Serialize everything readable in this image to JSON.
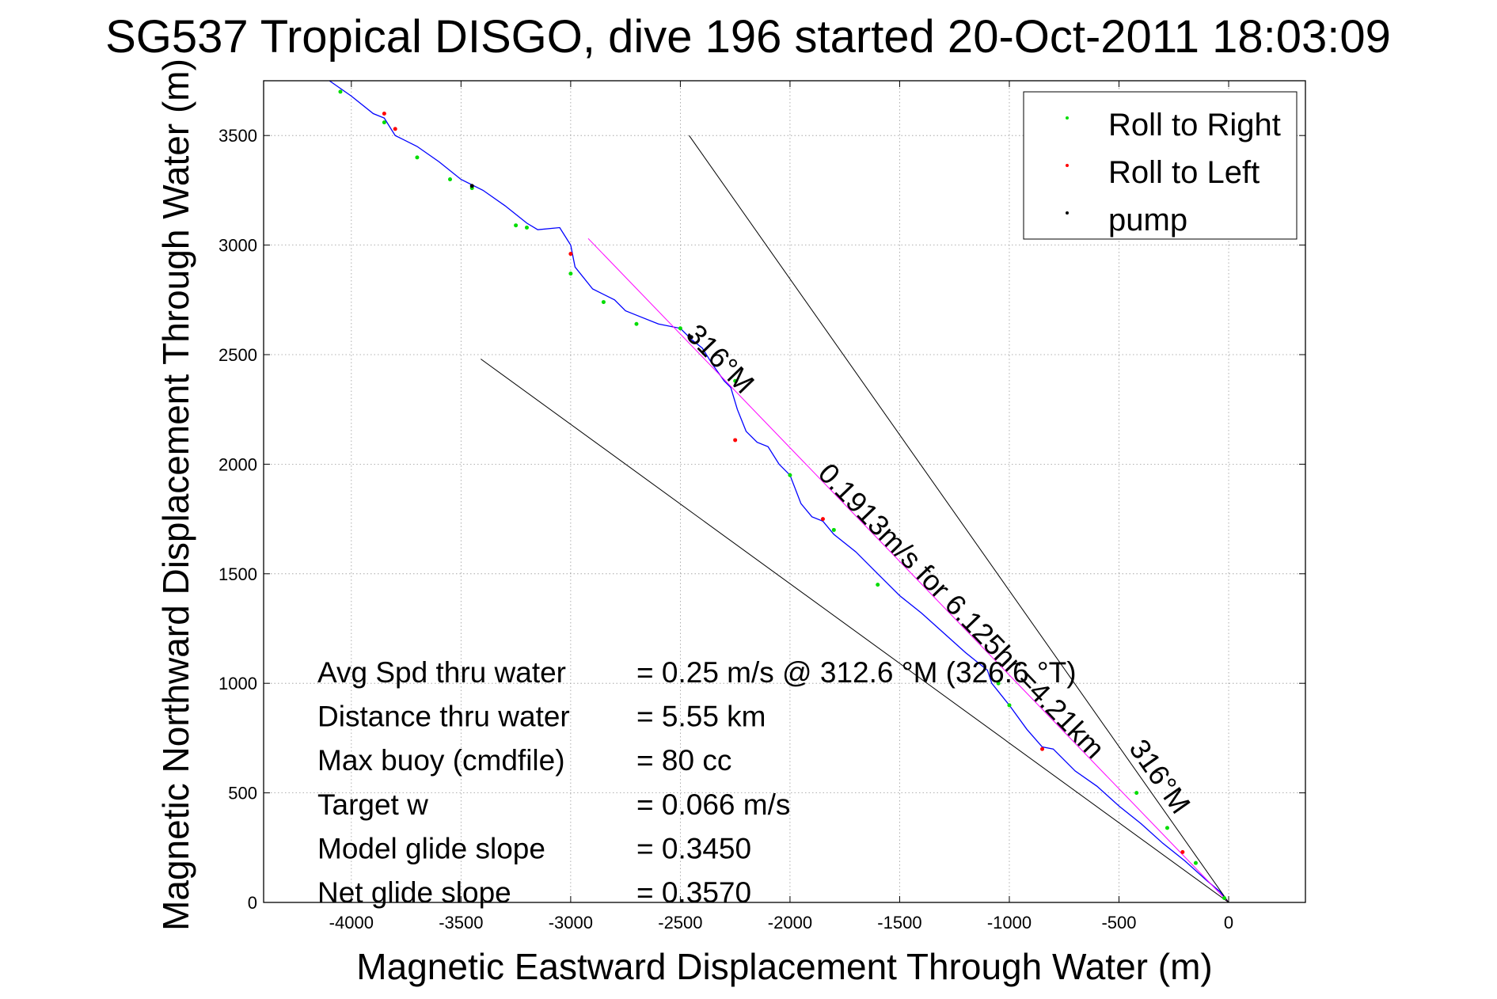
{
  "chart_data": {
    "type": "line",
    "title": "SG537 Tropical DISGO, dive 196 started 20-Oct-2011 18:03:09",
    "xlabel": "Magnetic Eastward Displacement Through Water (m)",
    "ylabel": "Magnetic Northward Displacement Through Water (m)",
    "xlim": [
      -4400,
      350
    ],
    "ylim": [
      0,
      3750
    ],
    "xticks": [
      -4000,
      -3500,
      -3000,
      -2500,
      -2000,
      -1500,
      -1000,
      -500,
      0
    ],
    "yticks": [
      0,
      500,
      1000,
      1500,
      2000,
      2500,
      3000,
      3500
    ],
    "xtick_labels": [
      "-4000",
      "-3500",
      "-3000",
      "-2500",
      "-2000",
      "-1500",
      "-1000",
      "-500",
      "0"
    ],
    "ytick_labels": [
      "0",
      "500",
      "1000",
      "1500",
      "2000",
      "2500",
      "3000",
      "3500"
    ],
    "grid": true,
    "legend_position": "top-right",
    "legend": [
      {
        "label": "Roll to Right",
        "color": "#00dd00"
      },
      {
        "label": "Roll to Left",
        "color": "#ff0000"
      },
      {
        "label": "pump",
        "color": "#000000"
      }
    ],
    "series": [
      {
        "color": "#0000ff",
        "x": [
          0,
          -40,
          -100,
          -200,
          -300,
          -400,
          -500,
          -600,
          -700,
          -800,
          -850,
          -920,
          -1000,
          -1080,
          -1100,
          -1200,
          -1300,
          -1400,
          -1500,
          -1600,
          -1700,
          -1800,
          -1850,
          -1900,
          -1950,
          -2000,
          -2050,
          -2100,
          -2150,
          -2200,
          -2240,
          -2270,
          -2300,
          -2350,
          -2400,
          -2450,
          -2500,
          -2600,
          -2700,
          -2750,
          -2800,
          -2900,
          -2980,
          -3000,
          -3050,
          -3150,
          -3200,
          -3300,
          -3400,
          -3500,
          -3600,
          -3700,
          -3800,
          -3850,
          -3900,
          -4000,
          -4100
        ],
        "y": [
          0,
          50,
          100,
          190,
          270,
          360,
          440,
          530,
          600,
          700,
          710,
          790,
          900,
          1000,
          1060,
          1140,
          1230,
          1320,
          1400,
          1500,
          1600,
          1680,
          1740,
          1760,
          1820,
          1950,
          2000,
          2080,
          2100,
          2150,
          2250,
          2350,
          2380,
          2450,
          2530,
          2570,
          2620,
          2640,
          2680,
          2700,
          2750,
          2800,
          2900,
          3000,
          3080,
          3070,
          3100,
          3180,
          3250,
          3300,
          3380,
          3450,
          3500,
          3580,
          3600,
          3680,
          3750
        ]
      },
      {
        "color": "#ff00ff",
        "x": [
          0,
          -2920
        ],
        "y": [
          0,
          3030
        ]
      },
      {
        "color": "#000000",
        "x": [
          0,
          -2460
        ],
        "y": [
          0,
          3500
        ]
      },
      {
        "color": "#000000",
        "x": [
          0,
          -3410
        ],
        "y": [
          0,
          2480
        ]
      }
    ],
    "roll_right_points": {
      "x": [
        -20,
        -150,
        -280,
        -420,
        -1000,
        -1050,
        -1600,
        -1800,
        -2000,
        -2250,
        -2500,
        -2700,
        -2850,
        -3000,
        -3200,
        -3250,
        -3450,
        -3550,
        -3700,
        -3850,
        -4050
      ],
      "y": [
        20,
        180,
        340,
        500,
        900,
        1000,
        1450,
        1700,
        1950,
        2380,
        2620,
        2640,
        2740,
        2870,
        3080,
        3090,
        3260,
        3300,
        3400,
        3560,
        3700
      ]
    },
    "roll_left_points": {
      "x": [
        -210,
        -850,
        -1850,
        -2250,
        -3000,
        -3800,
        -3850
      ],
      "y": [
        230,
        700,
        1750,
        2110,
        2960,
        3530,
        3600
      ]
    },
    "pump_points": {
      "x": [
        -2450,
        -3450
      ],
      "y": [
        2580,
        3270
      ]
    },
    "annotations": [
      {
        "text": "316°M",
        "x": -2350,
        "y": 2450
      },
      {
        "text": "0.1913m/s for 6.125hr =4.21km",
        "x": -1250,
        "y": 1300
      },
      {
        "text": "316°M",
        "x": -350,
        "y": 550
      }
    ],
    "stats": [
      {
        "label": "Avg Spd thru water",
        "value": "=  0.25 m/s @ 312.6  °M (326.6 °T)"
      },
      {
        "label": "Distance thru water",
        "value": "=  5.55 km"
      },
      {
        "label": "Max buoy (cmdfile)",
        "value": "= 80 cc"
      },
      {
        "label": "Target w",
        "value": "= 0.066 m/s"
      },
      {
        "label": "Model glide slope",
        "value": "= 0.3450"
      },
      {
        "label": "Net glide slope",
        "value": "= 0.3570"
      }
    ]
  }
}
